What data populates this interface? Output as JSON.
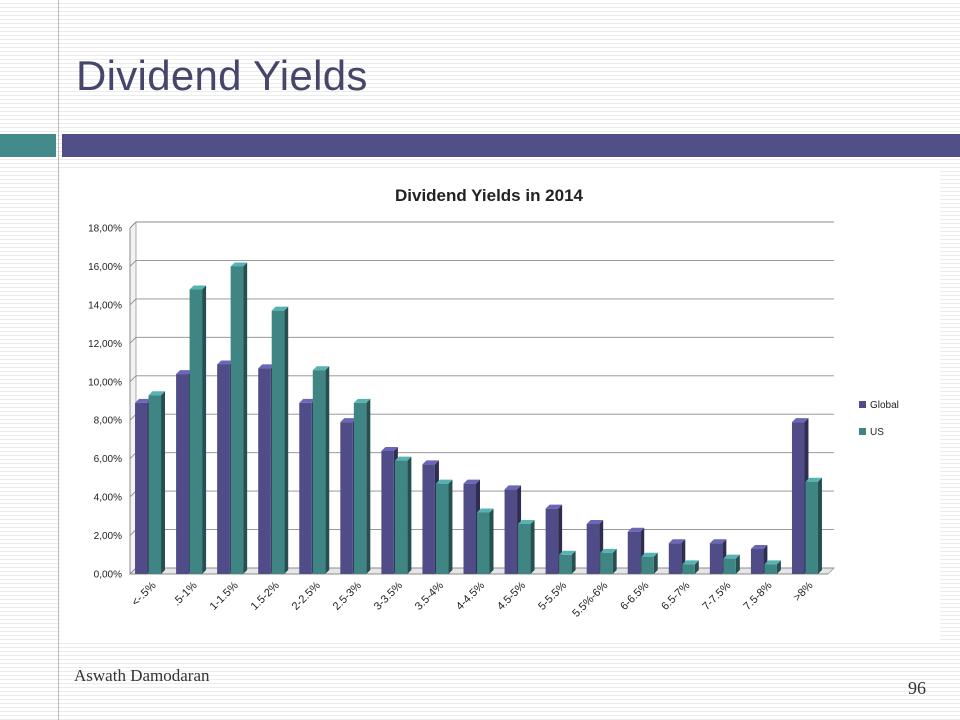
{
  "slide": {
    "title": "Dividend Yields",
    "author": "Aswath Damodaran",
    "page_number": "96"
  },
  "colors": {
    "accent_teal": "#438b8a",
    "accent_purple": "#514f87",
    "global_bar": "#4f4c88",
    "us_bar": "#3f8584"
  },
  "chart_data": {
    "type": "bar",
    "title": "Dividend Yields in 2014",
    "xlabel": "",
    "ylabel": "",
    "ylim": [
      0,
      18
    ],
    "y_ticks": [
      "0,00%",
      "2,00%",
      "4,00%",
      "6,00%",
      "8,00%",
      "10,00%",
      "12,00%",
      "14,00%",
      "16,00%",
      "18,00%"
    ],
    "categories": [
      "<-.5%",
      ".5-1%",
      "1-1.5%",
      "1.5-2%",
      "2-2.5%",
      "2.5-3%",
      "3-3.5%",
      "3.5-4%",
      "4-4.5%",
      "4.5-5%",
      "5-5.5%",
      "5.5%-6%",
      "6-6.5%",
      "6.5-7%",
      "7-7.5%",
      "7.5-8%",
      ">8%"
    ],
    "series": [
      {
        "name": "Global",
        "color": "#4f4c88",
        "values": [
          8.9,
          10.4,
          10.9,
          10.7,
          8.9,
          7.9,
          6.4,
          5.7,
          4.7,
          4.4,
          3.4,
          2.6,
          2.2,
          1.6,
          1.6,
          1.3,
          7.9
        ]
      },
      {
        "name": "US",
        "color": "#3f8584",
        "values": [
          9.3,
          14.8,
          16.0,
          13.7,
          10.6,
          8.9,
          5.9,
          4.7,
          3.2,
          2.6,
          1.0,
          1.1,
          0.9,
          0.5,
          0.8,
          0.5,
          4.8
        ]
      }
    ],
    "grid": true,
    "legend_position": "right"
  }
}
